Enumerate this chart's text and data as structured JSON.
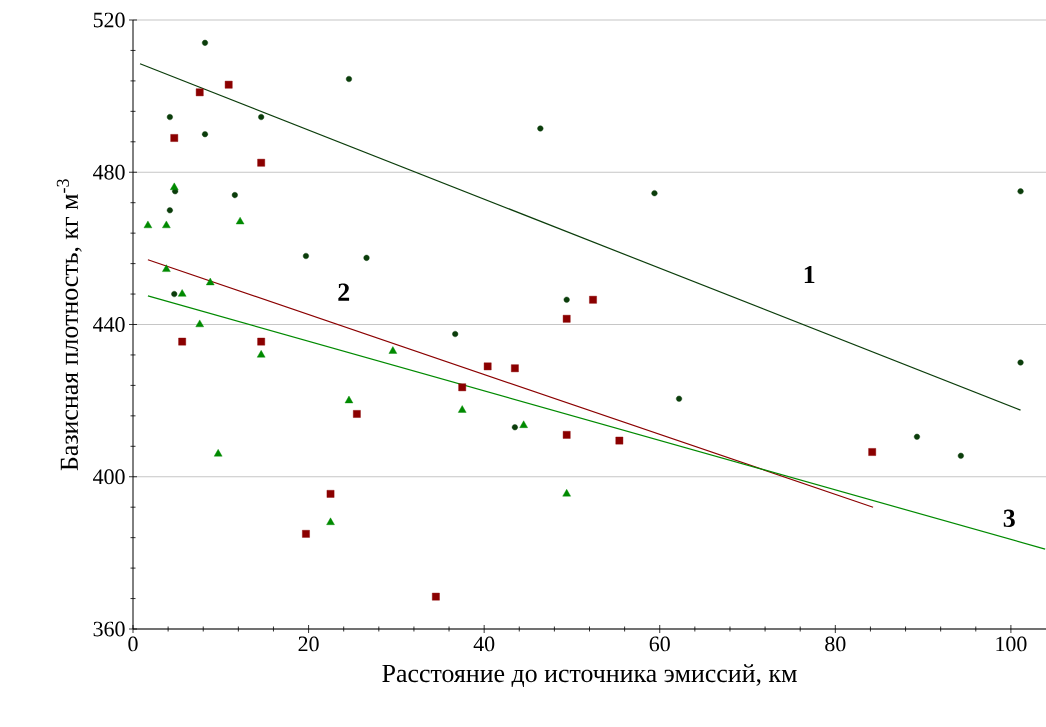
{
  "chart_data": {
    "type": "scatter",
    "xlabel": "Расстояние до источника эмиссий, км",
    "ylabel": "Базисная плотность, кг м$^{-3}$",
    "xlim": [
      0,
      104
    ],
    "ylim": [
      360,
      520
    ],
    "xticks": [
      0,
      20,
      40,
      60,
      80,
      100
    ],
    "yticks": [
      360,
      400,
      440,
      480,
      520
    ],
    "grid": "y",
    "series": [
      {
        "color": "#0b3d0b",
        "marker": "circle",
        "x": [
          8.2,
          4.2,
          8.2,
          14.6,
          11.6,
          4.8,
          4.2,
          19.7,
          26.6,
          24.6,
          46.4,
          59.4,
          4.7,
          36.7,
          49.4,
          62.2,
          43.5,
          101.1,
          101.1,
          89.3,
          94.3
        ],
        "values": [
          514,
          494.5,
          490,
          494.5,
          474,
          475,
          470,
          458,
          457.5,
          504.5,
          491.5,
          474.5,
          448,
          437.5,
          446.5,
          420.5,
          413,
          475,
          430,
          410.5,
          405.5
        ]
      },
      {
        "color": "#8b0000",
        "marker": "square",
        "x": [
          10.9,
          7.6,
          4.7,
          14.6,
          5.6,
          14.6,
          49.4,
          52.4,
          40.4,
          43.5,
          37.5,
          25.5,
          49.4,
          55.4,
          84.2,
          22.5,
          19.7,
          34.5
        ],
        "values": [
          503,
          501,
          489,
          482.5,
          435.5,
          435.5,
          441.5,
          446.5,
          429,
          428.5,
          423.5,
          416.5,
          411,
          409.5,
          406.5,
          395.5,
          385,
          368.5
        ]
      },
      {
        "color": "#008a00",
        "marker": "triangle",
        "x": [
          1.7,
          3.8,
          4.7,
          12.2,
          3.8,
          5.6,
          8.8,
          7.6,
          14.6,
          9.7,
          22.5,
          24.6,
          29.6,
          37.5,
          44.5,
          49.4
        ],
        "values": [
          466,
          466,
          476,
          467,
          454.5,
          448,
          451,
          440,
          432,
          406,
          388,
          420,
          433,
          417.5,
          413.5,
          395.5
        ]
      },
      {
        "type": "line",
        "name": "1",
        "color": "#0b3d0b",
        "marker": "none",
        "line_style": "solid",
        "x": [
          0.8,
          101.1
        ],
        "values": [
          508.5,
          417.5
        ]
      },
      {
        "type": "line",
        "name": "2",
        "color": "#8b0000",
        "marker": "none",
        "line_style": "solid",
        "x": [
          1.7,
          84.3
        ],
        "values": [
          457,
          392
        ]
      },
      {
        "type": "line",
        "name": "3",
        "color": "#008a00",
        "marker": "none",
        "line_style": "solid",
        "x": [
          1.7,
          103.9
        ],
        "values": [
          447.5,
          381
        ]
      }
    ]
  }
}
